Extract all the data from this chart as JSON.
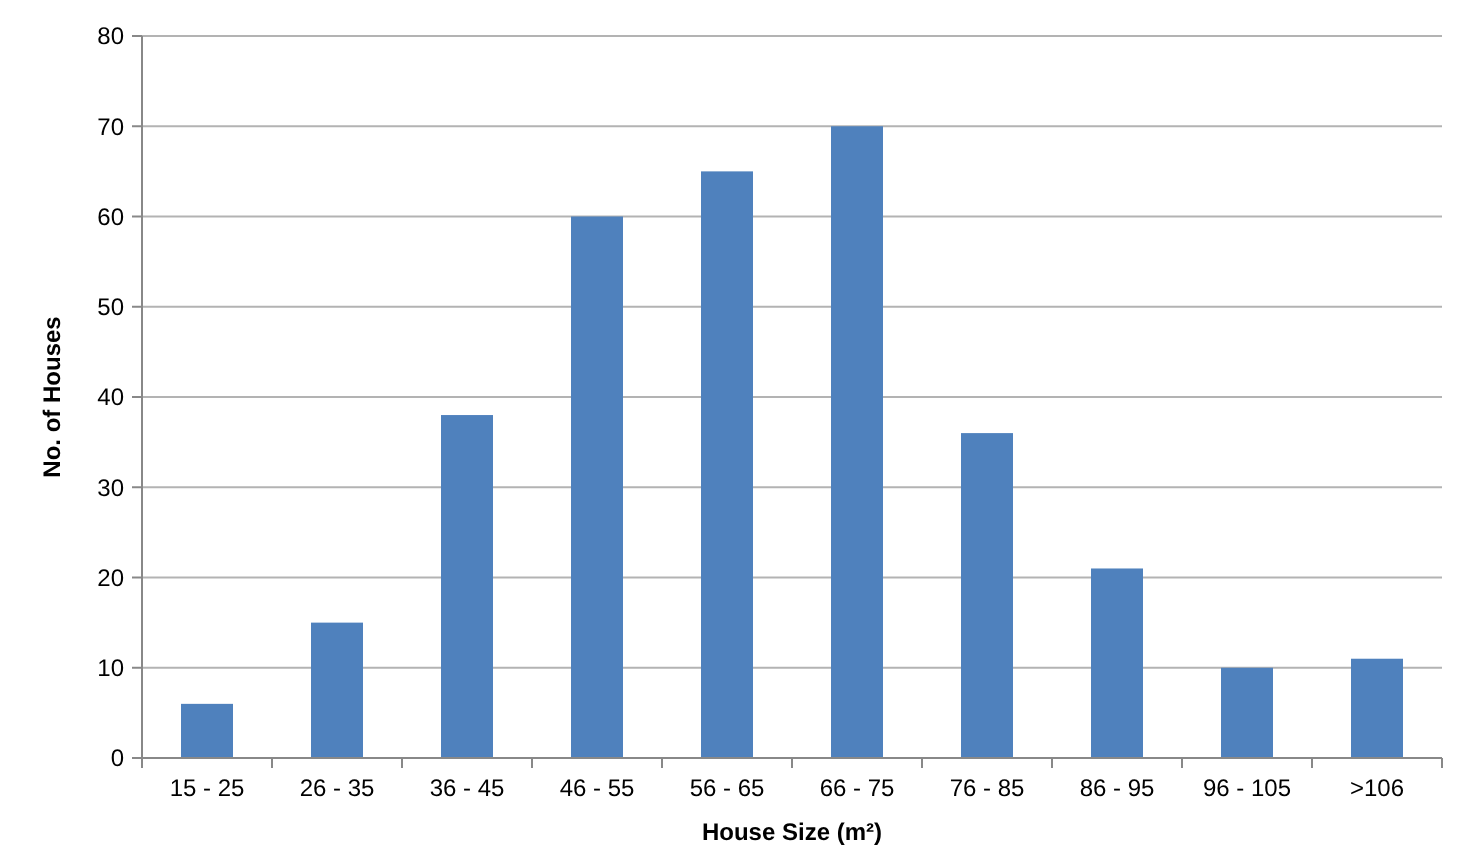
{
  "chart_data": {
    "type": "bar",
    "xlabel": "House Size (m²)",
    "ylabel": "No. of Houses",
    "categories": [
      "15 - 25",
      "26 - 35",
      "36 - 45",
      "46 - 55",
      "56 - 65",
      "66 - 75",
      "76 - 85",
      "86 - 95",
      "96 - 105",
      ">106"
    ],
    "values": [
      6,
      15,
      38,
      60,
      65,
      70,
      36,
      21,
      10,
      11
    ],
    "color": "#4f81bd",
    "ylim": [
      0,
      80
    ],
    "yticks": [
      0,
      10,
      20,
      30,
      40,
      50,
      60,
      70,
      80
    ],
    "grid": "y"
  }
}
